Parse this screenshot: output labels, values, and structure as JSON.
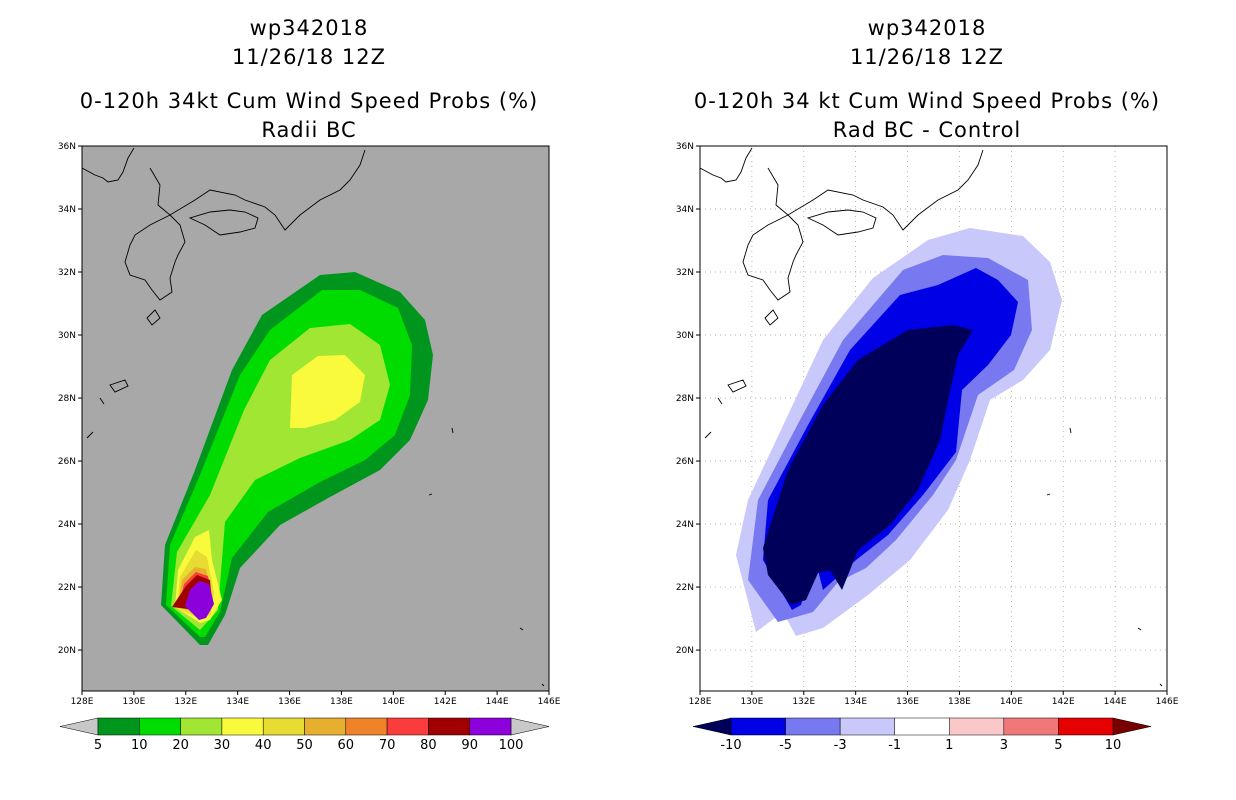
{
  "panels": [
    {
      "id": "left",
      "storm_id": "wp342018",
      "datetime": "11/26/18 12Z",
      "title": "0-120h 34kt Cum Wind Speed Probs (%)",
      "subtitle": "Radii BC",
      "background_color": "#a8a8a8",
      "colorbar": {
        "colors": [
          "#00961e",
          "#00dc00",
          "#a0e632",
          "#fafa3c",
          "#e6dc32",
          "#e6af2d",
          "#f08228",
          "#fa3c3c",
          "#a00000",
          "#8c00dc"
        ],
        "labels": [
          "5",
          "10",
          "20",
          "30",
          "40",
          "50",
          "60",
          "70",
          "80",
          "90",
          "100"
        ],
        "under_color": "#c8c8c8",
        "over_color": "#c8c8c8"
      }
    },
    {
      "id": "right",
      "storm_id": "wp342018",
      "datetime": "11/26/18 12Z",
      "title": "0-120h 34 kt Cum Wind Speed Probs (%)",
      "subtitle": "Rad BC - Control",
      "background_color": "#ffffff",
      "colorbar": {
        "colors": [
          "#0000e6",
          "#7878f0",
          "#c8c8fa",
          "#ffffff",
          "#fac8c8",
          "#f07878",
          "#e60000"
        ],
        "labels": [
          "-10",
          "-5",
          "-3",
          "-1",
          "1",
          "3",
          "5",
          "10"
        ],
        "under_color": "#00005a",
        "over_color": "#780000"
      }
    }
  ],
  "map": {
    "lon_ticks": [
      "128E",
      "130E",
      "132E",
      "134E",
      "136E",
      "138E",
      "140E",
      "142E",
      "144E",
      "146E"
    ],
    "lat_ticks": [
      "20N",
      "22N",
      "24N",
      "26N",
      "28N",
      "30N",
      "32N",
      "34N",
      "36N"
    ],
    "lon_range": [
      128,
      146
    ],
    "lat_range": [
      18.7,
      36
    ]
  },
  "prob_field_left": {
    "levels": [
      5,
      10,
      20,
      30,
      40,
      80,
      90
    ],
    "colors": [
      "#00961e",
      "#00dc00",
      "#a0e632",
      "#fafa3c",
      "#e6dc32",
      "#a00000",
      "#8c00dc"
    ]
  },
  "diff_field_right": {
    "levels": [
      -1,
      -3,
      -5,
      -10
    ],
    "colors": [
      "#c8c8fa",
      "#7878f0",
      "#0000e6",
      "#00005a"
    ]
  }
}
